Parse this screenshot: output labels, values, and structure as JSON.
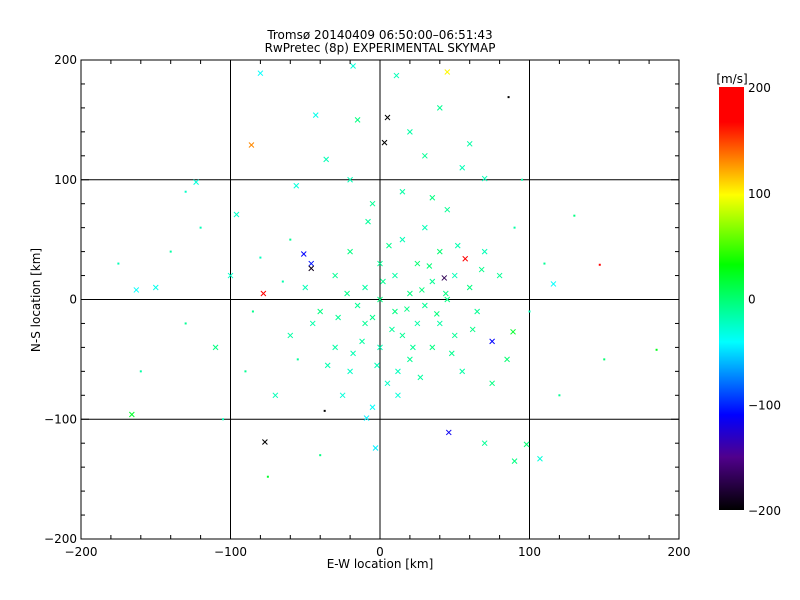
{
  "chart_data": {
    "type": "scatter",
    "title": "Tromsø 20140409 06:50:00–06:51:43",
    "subtitle": "RwPretec (8p) EXPERIMENTAL SKYMAP",
    "xlabel": "E-W location [km]",
    "ylabel": "N-S location [km]",
    "xlim": [
      -200,
      200
    ],
    "ylim": [
      -200,
      200
    ],
    "xticks": [
      -200,
      -100,
      0,
      100,
      200
    ],
    "yticks": [
      -200,
      -100,
      0,
      100,
      200
    ],
    "xtick_labels": [
      "−200",
      "−100",
      "0",
      "100",
      "200"
    ],
    "ytick_labels": [
      "−200",
      "−100",
      "0",
      "100",
      "200"
    ],
    "grid": true,
    "colorbar": {
      "label": "[m/s]",
      "range": [
        -200,
        200
      ],
      "ticks": [
        200,
        100,
        0,
        -100,
        -200
      ],
      "tick_labels": [
        "200",
        "100",
        "0",
        "−100",
        "−200"
      ],
      "placement": "right",
      "colors": [
        [
          -200,
          "#000000"
        ],
        [
          -150,
          "#50008c"
        ],
        [
          -110,
          "#0000ff"
        ],
        [
          -41,
          "#00ffff"
        ],
        [
          32,
          "#00ff00"
        ],
        [
          98,
          "#ffff00"
        ],
        [
          167,
          "#ff0000"
        ],
        [
          200,
          "#ff0000"
        ]
      ]
    },
    "point_format": [
      "x_km",
      "y_km",
      "velocity_m_s",
      "marker (1=cross, 0=dot)"
    ],
    "points": [
      [
        -80,
        189,
        -40,
        1
      ],
      [
        -86,
        129,
        130,
        1
      ],
      [
        5,
        152,
        -200,
        1
      ],
      [
        3,
        131,
        -200,
        1
      ],
      [
        45,
        190,
        100,
        1
      ],
      [
        86,
        169,
        -200,
        0
      ],
      [
        -36,
        117,
        -20,
        1
      ],
      [
        -43,
        154,
        -35,
        1
      ],
      [
        -18,
        195,
        -30,
        1
      ],
      [
        11,
        187,
        -20,
        1
      ],
      [
        40,
        160,
        -10,
        1
      ],
      [
        -78,
        5,
        180,
        1
      ],
      [
        147,
        29,
        200,
        0
      ],
      [
        57,
        34,
        170,
        1
      ],
      [
        -51,
        38,
        -110,
        1
      ],
      [
        -46,
        30,
        -105,
        1
      ],
      [
        -46,
        26,
        -190,
        1
      ],
      [
        75,
        -35,
        -110,
        1
      ],
      [
        46,
        -111,
        -115,
        1
      ],
      [
        -77,
        -119,
        -200,
        1
      ],
      [
        -166,
        -96,
        20,
        1
      ],
      [
        116,
        13,
        -40,
        1
      ],
      [
        107,
        -133,
        -30,
        1
      ],
      [
        90,
        -135,
        -5,
        1
      ],
      [
        98,
        -121,
        0,
        1
      ],
      [
        -3,
        -124,
        -45,
        1
      ],
      [
        -9,
        -99,
        -45,
        1
      ],
      [
        89,
        -27,
        20,
        1
      ],
      [
        185,
        -42,
        25,
        0
      ],
      [
        43,
        18,
        -170,
        1
      ],
      [
        -37,
        -93,
        -200,
        0
      ],
      [
        -75,
        -148,
        20,
        0
      ],
      [
        -123,
        98,
        -30,
        1
      ],
      [
        -163,
        8,
        -40,
        1
      ],
      [
        70,
        101,
        -20,
        1
      ],
      [
        -56,
        95,
        -30,
        1
      ],
      [
        -96,
        71,
        -25,
        1
      ],
      [
        20,
        140,
        -15,
        1
      ],
      [
        30,
        120,
        -10,
        1
      ],
      [
        55,
        110,
        -20,
        1
      ],
      [
        -15,
        150,
        -5,
        1
      ],
      [
        -120,
        60,
        -20,
        0
      ],
      [
        -140,
        40,
        -15,
        0
      ],
      [
        -150,
        10,
        -35,
        1
      ],
      [
        -130,
        -20,
        -10,
        0
      ],
      [
        -110,
        -40,
        -5,
        1
      ],
      [
        -100,
        20,
        -25,
        1
      ],
      [
        -90,
        -60,
        -10,
        0
      ],
      [
        -70,
        -80,
        -20,
        1
      ],
      [
        -60,
        -30,
        -15,
        1
      ],
      [
        -60,
        50,
        -10,
        0
      ],
      [
        -50,
        10,
        -20,
        1
      ],
      [
        -40,
        -10,
        -5,
        1
      ],
      [
        -30,
        -40,
        -15,
        1
      ],
      [
        -30,
        20,
        -10,
        1
      ],
      [
        -20,
        -60,
        -25,
        1
      ],
      [
        -20,
        40,
        -5,
        1
      ],
      [
        -10,
        -20,
        -10,
        1
      ],
      [
        -10,
        10,
        -15,
        1
      ],
      [
        0,
        0,
        -5,
        1
      ],
      [
        0,
        -40,
        -20,
        1
      ],
      [
        0,
        30,
        -10,
        1
      ],
      [
        5,
        -70,
        -25,
        1
      ],
      [
        10,
        -10,
        -5,
        1
      ],
      [
        10,
        20,
        -15,
        1
      ],
      [
        15,
        -30,
        -10,
        1
      ],
      [
        15,
        50,
        -20,
        1
      ],
      [
        20,
        -50,
        -10,
        1
      ],
      [
        20,
        5,
        -5,
        1
      ],
      [
        25,
        -20,
        -15,
        1
      ],
      [
        25,
        30,
        0,
        1
      ],
      [
        30,
        -5,
        -10,
        1
      ],
      [
        30,
        60,
        -20,
        1
      ],
      [
        35,
        -40,
        -5,
        1
      ],
      [
        35,
        15,
        -10,
        1
      ],
      [
        40,
        -20,
        -15,
        1
      ],
      [
        40,
        40,
        0,
        1
      ],
      [
        45,
        0,
        -5,
        1
      ],
      [
        50,
        -30,
        -10,
        1
      ],
      [
        50,
        20,
        -20,
        1
      ],
      [
        55,
        -60,
        -15,
        1
      ],
      [
        60,
        10,
        -5,
        1
      ],
      [
        65,
        -10,
        -10,
        1
      ],
      [
        70,
        40,
        -20,
        1
      ],
      [
        75,
        -70,
        -5,
        1
      ],
      [
        80,
        20,
        -10,
        1
      ],
      [
        85,
        -50,
        0,
        1
      ],
      [
        90,
        60,
        -15,
        0
      ],
      [
        100,
        -10,
        -20,
        0
      ],
      [
        110,
        30,
        -10,
        0
      ],
      [
        -25,
        -80,
        -30,
        1
      ],
      [
        -5,
        -90,
        -40,
        1
      ],
      [
        12,
        -80,
        -30,
        1
      ],
      [
        -15,
        -5,
        -10,
        1
      ],
      [
        -5,
        -15,
        -8,
        1
      ],
      [
        8,
        -25,
        -12,
        1
      ],
      [
        18,
        -8,
        -6,
        1
      ],
      [
        28,
        8,
        -4,
        1
      ],
      [
        -12,
        -35,
        -14,
        1
      ],
      [
        2,
        15,
        -9,
        1
      ],
      [
        22,
        -40,
        -11,
        1
      ],
      [
        -22,
        5,
        -7,
        1
      ],
      [
        38,
        -12,
        -3,
        1
      ],
      [
        -35,
        -55,
        -18,
        1
      ],
      [
        6,
        45,
        -8,
        1
      ],
      [
        -8,
        65,
        -12,
        1
      ],
      [
        48,
        -45,
        -9,
        1
      ],
      [
        62,
        -25,
        -6,
        1
      ],
      [
        -45,
        -20,
        -16,
        1
      ],
      [
        33,
        28,
        -2,
        1
      ],
      [
        -18,
        -45,
        -19,
        1
      ],
      [
        12,
        -60,
        -22,
        1
      ],
      [
        -2,
        -55,
        -21,
        1
      ],
      [
        27,
        -65,
        -14,
        1
      ],
      [
        -28,
        -15,
        -11,
        1
      ],
      [
        44,
        5,
        -5,
        1
      ],
      [
        52,
        45,
        -18,
        1
      ],
      [
        68,
        25,
        -7,
        1
      ],
      [
        -55,
        -50,
        -12,
        0
      ],
      [
        -65,
        15,
        -17,
        0
      ],
      [
        -80,
        35,
        -22,
        0
      ],
      [
        -85,
        -10,
        -8,
        0
      ],
      [
        120,
        -80,
        -10,
        0
      ],
      [
        -160,
        -60,
        -15,
        0
      ],
      [
        -175,
        30,
        -20,
        0
      ],
      [
        150,
        -50,
        0,
        0
      ],
      [
        -130,
        90,
        -25,
        0
      ],
      [
        130,
        70,
        -5,
        0
      ],
      [
        95,
        100,
        -15,
        0
      ],
      [
        -105,
        -100,
        -20,
        0
      ],
      [
        70,
        -120,
        -10,
        1
      ],
      [
        -40,
        -130,
        -5,
        0
      ],
      [
        -5,
        80,
        -10,
        1
      ],
      [
        15,
        90,
        -15,
        1
      ],
      [
        35,
        85,
        -5,
        1
      ],
      [
        -20,
        100,
        -20,
        1
      ],
      [
        45,
        75,
        -10,
        1
      ],
      [
        60,
        130,
        -15,
        1
      ]
    ]
  }
}
